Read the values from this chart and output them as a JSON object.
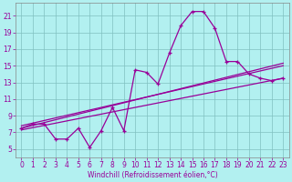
{
  "xlabel": "Windchill (Refroidissement éolien,°C)",
  "bg_color": "#b2f0f0",
  "line_color": "#990099",
  "grid_color": "#80c0c0",
  "x_ticks": [
    0,
    1,
    2,
    3,
    4,
    5,
    6,
    7,
    8,
    9,
    10,
    11,
    12,
    13,
    14,
    15,
    16,
    17,
    18,
    19,
    20,
    21,
    22,
    23
  ],
  "y_ticks": [
    5,
    7,
    9,
    11,
    13,
    15,
    17,
    19,
    21
  ],
  "xlim": [
    -0.5,
    23.5
  ],
  "ylim": [
    4.0,
    22.5
  ],
  "jagged_x": [
    0,
    1,
    2,
    3,
    4,
    5,
    6,
    7,
    8,
    9,
    10,
    11,
    12,
    13,
    14,
    15,
    16,
    17,
    18,
    19,
    20,
    21,
    22,
    23
  ],
  "jagged_y": [
    7.5,
    8.0,
    8.0,
    6.2,
    6.2,
    7.5,
    5.2,
    7.2,
    10.0,
    7.2,
    14.5,
    14.2,
    12.8,
    16.5,
    19.8,
    21.5,
    21.5,
    19.5,
    15.5,
    15.5,
    14.0,
    13.5,
    13.2,
    13.5
  ],
  "line1_x": [
    0,
    23
  ],
  "line1_y": [
    7.3,
    13.5
  ],
  "line2_x": [
    0,
    23
  ],
  "line2_y": [
    7.5,
    15.3
  ],
  "line3_x": [
    0,
    23
  ],
  "line3_y": [
    7.8,
    15.0
  ],
  "tick_fontsize": 5.5,
  "xlabel_fontsize": 5.5
}
